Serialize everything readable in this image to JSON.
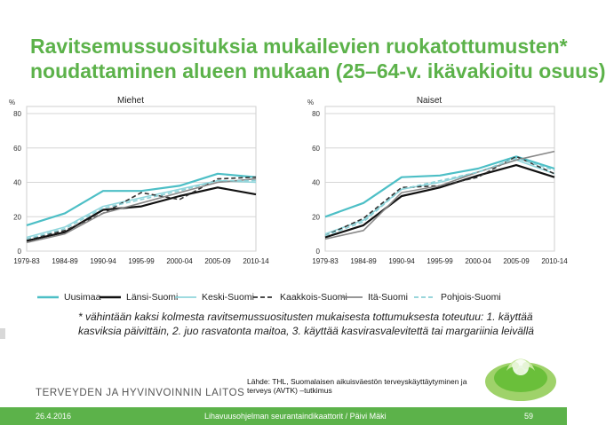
{
  "title": {
    "line1": "Ravitsemussuosituksia mukailevien ruokatottumusten*",
    "line2": "noudattaminen alueen mukaan (25–64-v. ikävakioitu osuus)"
  },
  "colors": {
    "Uusimaa": "#4dbfc6",
    "Länsi-Suomi": "#111111",
    "Keski-Suomi": "#90d6dc",
    "Kaakkois-Suomi": "#333333",
    "Itä-Suomi": "#888888",
    "Pohjois-Suomi": "#8bd0d6",
    "title_green": "#5cb24a"
  },
  "chart_data": [
    {
      "type": "line",
      "title": "Miehet",
      "ylabel": "%",
      "xlabel": "",
      "ylim": [
        0,
        80
      ],
      "yticks": [
        0,
        20,
        40,
        60,
        80
      ],
      "categories": [
        "1979-83",
        "1984-89",
        "1990-94",
        "1995-99",
        "2000-04",
        "2005-09",
        "2010-14"
      ],
      "series": [
        {
          "name": "Uusimaa",
          "values": [
            15,
            22,
            35,
            35,
            38,
            45,
            43
          ]
        },
        {
          "name": "Länsi-Suomi",
          "values": [
            6,
            11,
            24,
            26,
            32,
            37,
            33
          ]
        },
        {
          "name": "Keski-Suomi",
          "values": [
            8,
            14,
            26,
            31,
            36,
            41,
            40
          ]
        },
        {
          "name": "Kaakkois-Suomi",
          "values": [
            7,
            12,
            22,
            34,
            30,
            42,
            43
          ]
        },
        {
          "name": "Itä-Suomi",
          "values": [
            5,
            10,
            22,
            28,
            34,
            40,
            42
          ]
        },
        {
          "name": "Pohjois-Suomi",
          "values": [
            7,
            13,
            25,
            30,
            35,
            41,
            41
          ]
        }
      ]
    },
    {
      "type": "line",
      "title": "Naiset",
      "ylabel": "%",
      "xlabel": "",
      "ylim": [
        0,
        80
      ],
      "yticks": [
        0,
        20,
        40,
        60,
        80
      ],
      "categories": [
        "1979-83",
        "1984-89",
        "1990-94",
        "1995-99",
        "2000-04",
        "2005-09",
        "2010-14"
      ],
      "series": [
        {
          "name": "Uusimaa",
          "values": [
            20,
            28,
            43,
            44,
            48,
            55,
            48
          ]
        },
        {
          "name": "Länsi-Suomi",
          "values": [
            8,
            15,
            32,
            37,
            44,
            50,
            43
          ]
        },
        {
          "name": "Keski-Suomi",
          "values": [
            10,
            18,
            36,
            40,
            46,
            53,
            45
          ]
        },
        {
          "name": "Kaakkois-Suomi",
          "values": [
            9,
            19,
            37,
            38,
            43,
            55,
            45
          ]
        },
        {
          "name": "Itä-Suomi",
          "values": [
            7,
            12,
            34,
            38,
            46,
            53,
            58
          ]
        },
        {
          "name": "Pohjois-Suomi",
          "values": [
            9,
            17,
            36,
            41,
            46,
            54,
            47
          ]
        }
      ]
    }
  ],
  "legend": [
    {
      "label": "Uusimaa",
      "style": "solid-thick"
    },
    {
      "label": "Länsi-Suomi",
      "style": "solid-thick"
    },
    {
      "label": "Keski-Suomi",
      "style": "solid"
    },
    {
      "label": "Kaakkois-Suomi",
      "style": "dashed"
    },
    {
      "label": "Itä-Suomi",
      "style": "solid"
    },
    {
      "label": "Pohjois-Suomi",
      "style": "dashed"
    }
  ],
  "footnote": {
    "line1": "* vähintään kaksi kolmesta ravitsemussuositusten mukaisesta tottumuksesta toteutuu: 1. käyttää",
    "line2": "kasviksia päivittäin, 2. juo rasvatonta maitoa, 3. käyttää kasvirasvalevitettä tai margariinia leivällä"
  },
  "source": "Lähde: THL, Suomalaisen aikuisväestön terveyskäyttäytyminen ja terveys (AVTK) –tutkimus",
  "organization": "TERVEYDEN JA HYVINVOINNIN LAITOS",
  "footer": {
    "date": "26.4.2016",
    "center": "Lihavuusohjelman seurantaindikaattorit / Päivi Mäki",
    "page": "59"
  }
}
